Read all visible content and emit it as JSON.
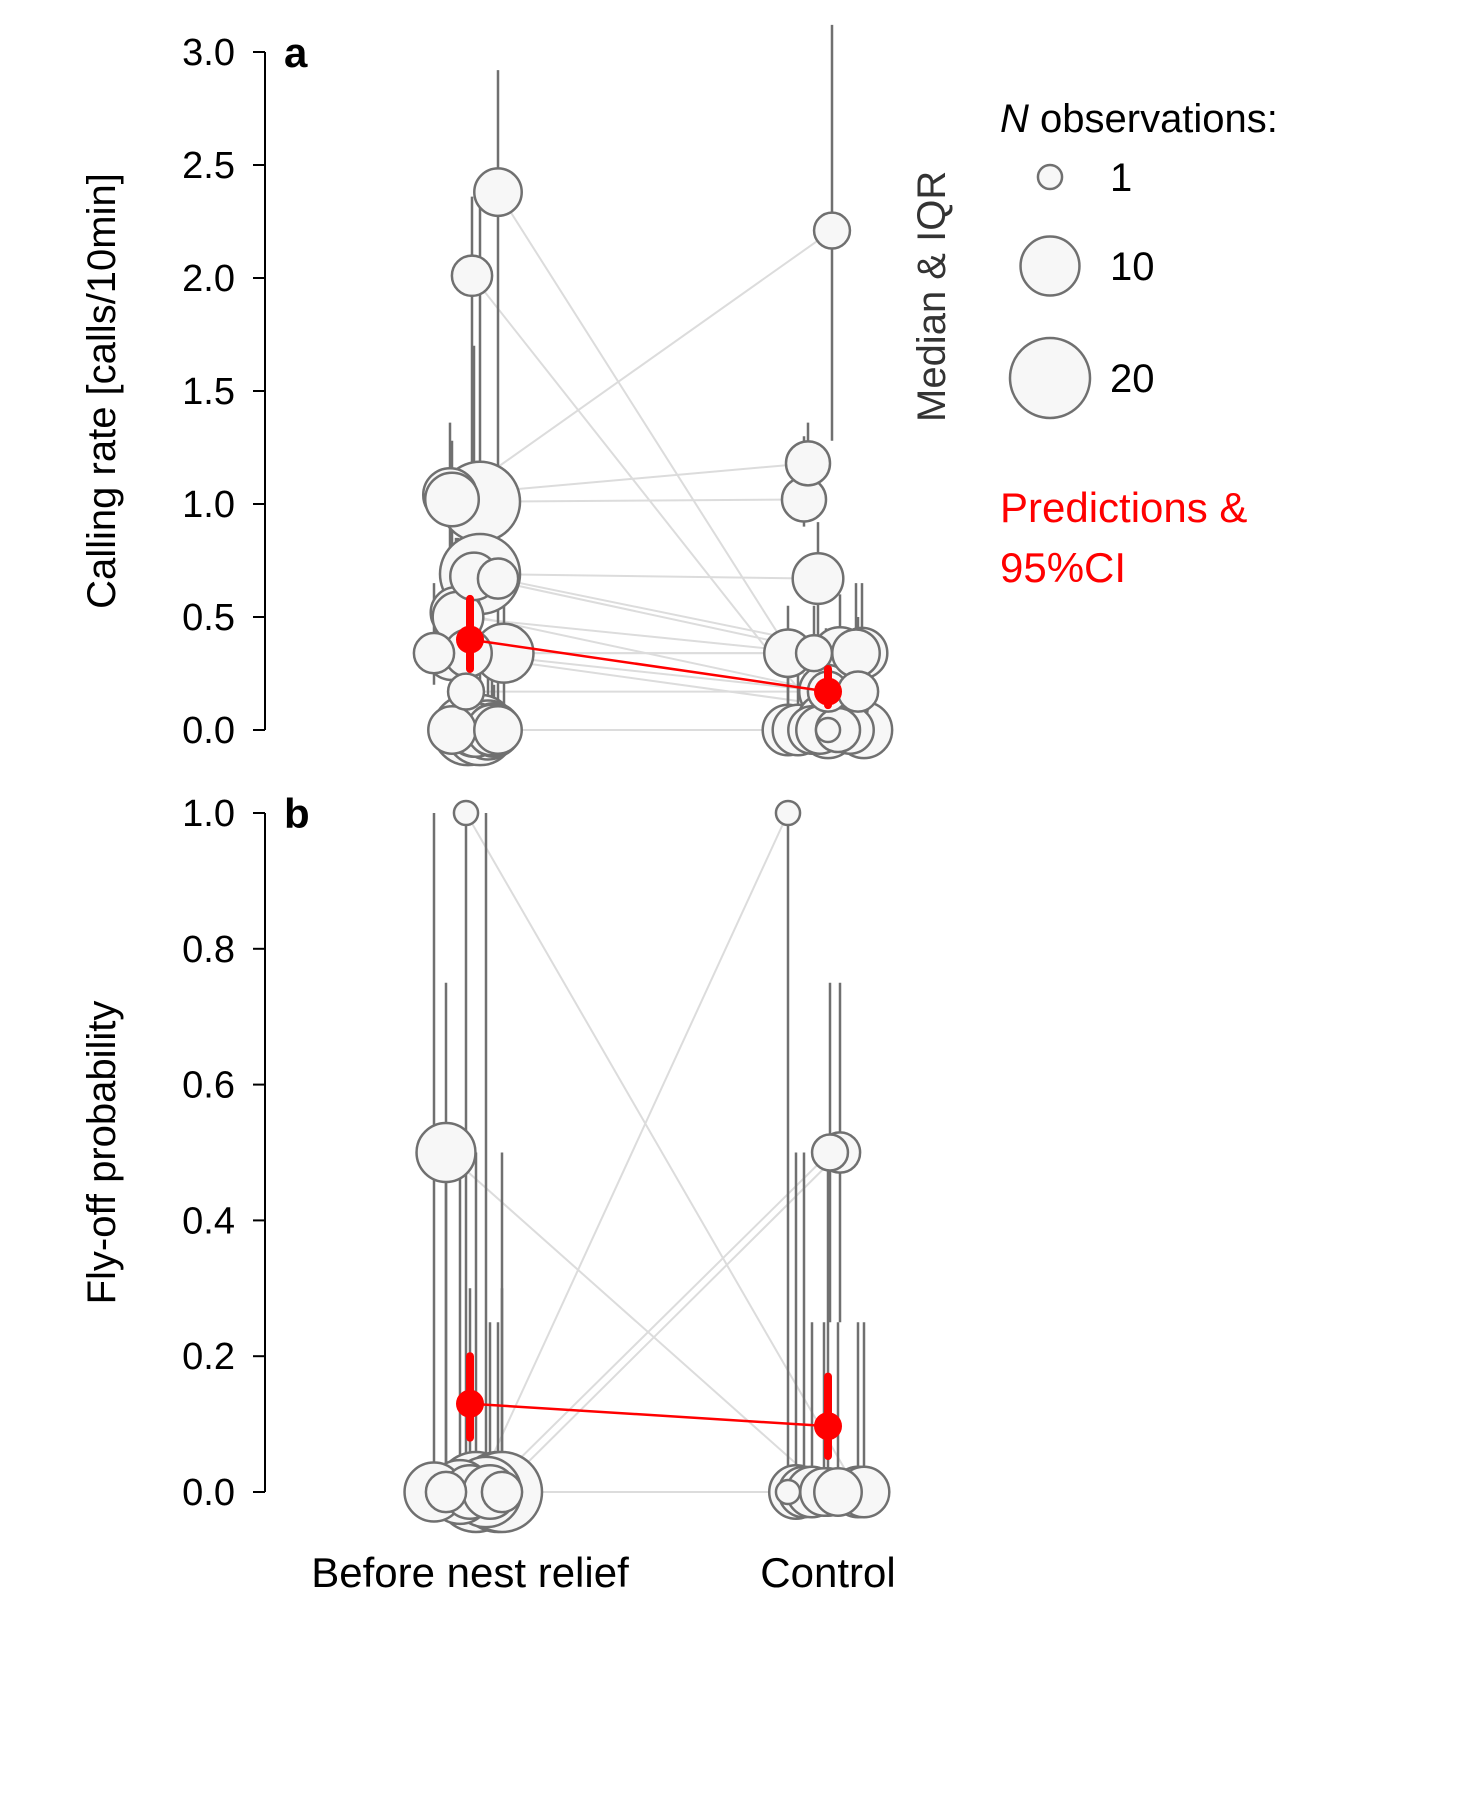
{
  "colors": {
    "bubble_fill": "#f7f7f7",
    "bubble_stroke": "#707070",
    "connector": "#dcdcdc",
    "iqr": "#707070",
    "prediction": "#ff0000",
    "axis": "#000000"
  },
  "chart_data": [
    {
      "type": "scatter",
      "panel_label": "a",
      "ylabel": "Calling rate [calls/10min]",
      "xlabel": "",
      "categories": [
        "Before nest relief",
        "Control"
      ],
      "ylim": [
        0,
        3.0
      ],
      "yticks": [
        0.0,
        0.5,
        1.0,
        1.5,
        2.0,
        2.5,
        3.0
      ],
      "ytick_labels": [
        "0.0",
        "0.5",
        "1.0",
        "1.5",
        "2.0",
        "2.5",
        "3.0"
      ],
      "show_x_labels": false,
      "pairs": [
        {
          "before": {
            "jitter": 0.14,
            "y": 2.38,
            "lo": 1.05,
            "hi": 2.92,
            "n": 6
          },
          "control": {
            "jitter": 0.02,
            "y": 0.05,
            "lo": 0.0,
            "hi": 0.3,
            "n": 6
          }
        },
        {
          "before": {
            "jitter": 0.01,
            "y": 2.01,
            "lo": 1.05,
            "hi": 2.36,
            "n": 4
          },
          "control": {
            "jitter": -0.03,
            "y": 0.05,
            "lo": 0.0,
            "hi": 0.3,
            "n": 6
          }
        },
        {
          "before": {
            "jitter": 0.05,
            "y": 1.01,
            "lo": 0.6,
            "hi": 2.36,
            "n": 20
          },
          "control": {
            "jitter": -0.12,
            "y": 1.02,
            "lo": 0.9,
            "hi": 1.3,
            "n": 5
          }
        },
        {
          "before": {
            "jitter": -0.1,
            "y": 1.04,
            "lo": 0.3,
            "hi": 1.36,
            "n": 8
          },
          "control": {
            "jitter": -0.1,
            "y": 1.18,
            "lo": 1.0,
            "hi": 1.36,
            "n": 5
          }
        },
        {
          "before": {
            "jitter": -0.09,
            "y": 1.02,
            "lo": 0.7,
            "hi": 1.28,
            "n": 8
          },
          "control": {
            "jitter": 0.02,
            "y": 2.21,
            "lo": 1.28,
            "hi": 3.12,
            "n": 3
          }
        },
        {
          "before": {
            "jitter": 0.05,
            "y": 0.69,
            "lo": 0.3,
            "hi": 1.0,
            "n": 20
          },
          "control": {
            "jitter": -0.05,
            "y": 0.67,
            "lo": 0.35,
            "hi": 0.92,
            "n": 7
          }
        },
        {
          "before": {
            "jitter": 0.02,
            "y": 0.68,
            "lo": 0.35,
            "hi": 1.7,
            "n": 6
          },
          "control": {
            "jitter": 0.06,
            "y": 0.33,
            "lo": 0.1,
            "hi": 0.6,
            "n": 9
          }
        },
        {
          "before": {
            "jitter": 0.14,
            "y": 0.67,
            "lo": 0.35,
            "hi": 1.02,
            "n": 4
          },
          "control": {
            "jitter": 0.17,
            "y": 0.34,
            "lo": 0.1,
            "hi": 0.65,
            "n": 7
          }
        },
        {
          "before": {
            "jitter": -0.07,
            "y": 0.52,
            "lo": 0.2,
            "hi": 0.85,
            "n": 7
          },
          "control": {
            "jitter": -0.01,
            "y": 0.17,
            "lo": 0.05,
            "hi": 0.45,
            "n": 8
          }
        },
        {
          "before": {
            "jitter": -0.06,
            "y": 0.5,
            "lo": 0.2,
            "hi": 0.85,
            "n": 7
          },
          "control": {
            "jitter": -0.07,
            "y": 0.34,
            "lo": 0.05,
            "hi": 0.55,
            "n": 3
          }
        },
        {
          "before": {
            "jitter": 0.17,
            "y": 0.34,
            "lo": 0.0,
            "hi": 0.6,
            "n": 10
          },
          "control": {
            "jitter": -0.2,
            "y": 0.34,
            "lo": 0.0,
            "hi": 0.55,
            "n": 6
          }
        },
        {
          "before": {
            "jitter": -0.18,
            "y": 0.34,
            "lo": 0.2,
            "hi": 0.65,
            "n": 4
          },
          "control": {
            "jitter": 0.14,
            "y": 0.34,
            "lo": 0.05,
            "hi": 0.65,
            "n": 6
          }
        },
        {
          "before": {
            "jitter": -0.09,
            "y": 0.34,
            "lo": 0.0,
            "hi": 0.6,
            "n": 8
          },
          "control": {
            "jitter": 0.08,
            "y": 0.1,
            "lo": 0.0,
            "hi": 0.45,
            "n": 6
          }
        },
        {
          "before": {
            "jitter": -0.01,
            "y": 0.34,
            "lo": 0.05,
            "hi": 0.6,
            "n": 6
          },
          "control": {
            "jitter": 0.0,
            "y": 0.17,
            "lo": 0.0,
            "hi": 0.4,
            "n": 4
          }
        },
        {
          "before": {
            "jitter": -0.02,
            "y": 0.17,
            "lo": 0.0,
            "hi": 0.4,
            "n": 3
          },
          "control": {
            "jitter": 0.15,
            "y": 0.17,
            "lo": 0.0,
            "hi": 0.5,
            "n": 4
          }
        },
        {
          "before": {
            "jitter": -0.09,
            "y": 0.0,
            "lo": 0.0,
            "hi": 0.3,
            "n": 6
          },
          "control": {
            "jitter": -0.2,
            "y": 0.0,
            "lo": 0.0,
            "hi": 0.3,
            "n": 7
          }
        },
        {
          "before": {
            "jitter": -0.01,
            "y": 0.0,
            "lo": 0.0,
            "hi": 0.35,
            "n": 15
          },
          "control": {
            "jitter": -0.15,
            "y": 0.0,
            "lo": 0.0,
            "hi": 0.25,
            "n": 7
          }
        },
        {
          "before": {
            "jitter": 0.05,
            "y": 0.0,
            "lo": 0.0,
            "hi": 0.4,
            "n": 15
          },
          "control": {
            "jitter": -0.08,
            "y": 0.0,
            "lo": 0.0,
            "hi": 0.2,
            "n": 6
          }
        },
        {
          "before": {
            "jitter": 0.09,
            "y": 0.0,
            "lo": 0.0,
            "hi": 0.3,
            "n": 10
          },
          "control": {
            "jitter": -0.04,
            "y": 0.0,
            "lo": 0.0,
            "hi": 0.2,
            "n": 6
          }
        },
        {
          "before": {
            "jitter": 0.11,
            "y": 0.0,
            "lo": 0.0,
            "hi": 0.3,
            "n": 7
          },
          "control": {
            "jitter": 0.05,
            "y": 0.0,
            "lo": 0.0,
            "hi": 0.1,
            "n": 5
          }
        },
        {
          "before": {
            "jitter": 0.14,
            "y": 0.0,
            "lo": 0.0,
            "hi": 0.3,
            "n": 6
          },
          "control": {
            "jitter": 0.11,
            "y": 0.0,
            "lo": 0.0,
            "hi": 0.2,
            "n": 6
          }
        },
        {
          "before": {
            "jitter": 0.02,
            "y": 0.0,
            "lo": 0.0,
            "hi": 0.3,
            "n": 8
          },
          "control": {
            "jitter": 0.0,
            "y": 0.0,
            "lo": 0.0,
            "hi": 0.1,
            "n": 9
          }
        },
        {
          "before": {
            "jitter": 0.03,
            "y": 0.0,
            "lo": 0.0,
            "hi": 0.2,
            "n": 8
          },
          "control": {
            "jitter": 0.0,
            "y": 0.0,
            "lo": 0.0,
            "hi": 0.0,
            "n": 1
          }
        },
        {
          "before": {
            "jitter": 0.12,
            "y": 0.0,
            "lo": 0.0,
            "hi": 0.2,
            "n": 8
          },
          "control": {
            "jitter": 0.18,
            "y": 0.0,
            "lo": 0.0,
            "hi": 0.15,
            "n": 9
          }
        }
      ],
      "predictions": [
        {
          "category": "Before nest relief",
          "jitter": 0.0,
          "y": 0.4,
          "lo": 0.27,
          "hi": 0.58
        },
        {
          "category": "Control",
          "jitter": 0.0,
          "y": 0.17,
          "lo": 0.11,
          "hi": 0.27
        }
      ]
    },
    {
      "type": "scatter",
      "panel_label": "b",
      "ylabel": "Fly-off probability",
      "xlabel": "",
      "categories": [
        "Before nest relief",
        "Control"
      ],
      "ylim": [
        0,
        1.0
      ],
      "yticks": [
        0.0,
        0.2,
        0.4,
        0.6,
        0.8,
        1.0
      ],
      "ytick_labels": [
        "0.0",
        "0.2",
        "0.4",
        "0.6",
        "0.8",
        "1.0"
      ],
      "show_x_labels": true,
      "pairs": [
        {
          "before": {
            "jitter": -0.02,
            "y": 1.0,
            "lo": 0.0,
            "hi": 1.0,
            "n": 1
          },
          "control": {
            "jitter": 0.15,
            "y": 0.0,
            "lo": 0.0,
            "hi": 0.25,
            "n": 7
          }
        },
        {
          "before": {
            "jitter": -0.12,
            "y": 0.5,
            "lo": 0.0,
            "hi": 0.75,
            "n": 10
          },
          "control": {
            "jitter": 0.0,
            "y": 0.0,
            "lo": 0.0,
            "hi": 0.5,
            "n": 6
          }
        },
        {
          "before": {
            "jitter": 0.03,
            "y": 0.0,
            "lo": 0.0,
            "hi": 0.5,
            "n": 20
          },
          "control": {
            "jitter": -0.2,
            "y": 1.0,
            "lo": 0.0,
            "hi": 1.0,
            "n": 1
          }
        },
        {
          "before": {
            "jitter": 0.08,
            "y": 0.0,
            "lo": 0.0,
            "hi": 1.0,
            "n": 15
          },
          "control": {
            "jitter": 0.01,
            "y": 0.5,
            "lo": 0.25,
            "hi": 0.75,
            "n": 3
          }
        },
        {
          "before": {
            "jitter": 0.14,
            "y": 0.0,
            "lo": 0.0,
            "hi": 0.25,
            "n": 20
          },
          "control": {
            "jitter": 0.06,
            "y": 0.5,
            "lo": 0.25,
            "hi": 0.75,
            "n": 4
          }
        },
        {
          "before": {
            "jitter": -0.18,
            "y": 0.0,
            "lo": 0.0,
            "hi": 1.0,
            "n": 10
          },
          "control": {
            "jitter": -0.16,
            "y": 0.0,
            "lo": 0.0,
            "hi": 0.5,
            "n": 8
          }
        },
        {
          "before": {
            "jitter": -0.12,
            "y": 0.0,
            "lo": 0.0,
            "hi": 0.5,
            "n": 4
          },
          "control": {
            "jitter": -0.2,
            "y": 0.0,
            "lo": 0.0,
            "hi": 0.0,
            "n": 1
          }
        },
        {
          "before": {
            "jitter": -0.05,
            "y": 0.0,
            "lo": 0.0,
            "hi": 0.5,
            "n": 12
          },
          "control": {
            "jitter": -0.12,
            "y": 0.0,
            "lo": 0.0,
            "hi": 0.5,
            "n": 7
          }
        },
        {
          "before": {
            "jitter": 0.16,
            "y": 0.0,
            "lo": 0.0,
            "hi": 0.5,
            "n": 20
          },
          "control": {
            "jitter": -0.08,
            "y": 0.0,
            "lo": 0.0,
            "hi": 0.25,
            "n": 7
          }
        },
        {
          "before": {
            "jitter": 0.0,
            "y": 0.0,
            "lo": 0.0,
            "hi": 0.3,
            "n": 8
          },
          "control": {
            "jitter": -0.02,
            "y": 0.0,
            "lo": 0.0,
            "hi": 0.25,
            "n": 6
          }
        },
        {
          "before": {
            "jitter": 0.1,
            "y": 0.0,
            "lo": 0.0,
            "hi": 0.25,
            "n": 8
          },
          "control": {
            "jitter": 0.05,
            "y": 0.0,
            "lo": 0.0,
            "hi": 0.25,
            "n": 6
          }
        },
        {
          "before": {
            "jitter": 0.16,
            "y": 0.0,
            "lo": 0.0,
            "hi": 0.3,
            "n": 4
          },
          "control": {
            "jitter": 0.18,
            "y": 0.0,
            "lo": 0.0,
            "hi": 0.25,
            "n": 7
          }
        }
      ],
      "predictions": [
        {
          "category": "Before nest relief",
          "jitter": 0.0,
          "y": 0.13,
          "lo": 0.08,
          "hi": 0.2
        },
        {
          "category": "Control",
          "jitter": 0.0,
          "y": 0.097,
          "lo": 0.053,
          "hi": 0.17
        }
      ]
    }
  ],
  "legend": {
    "title_italic": "N",
    "title_rest": " observations:",
    "sizes": [
      {
        "n": 1,
        "label": "1"
      },
      {
        "n": 10,
        "label": "10"
      },
      {
        "n": 20,
        "label": "20"
      }
    ],
    "side_label": "Median & IQR",
    "prediction_line1": "Predictions &",
    "prediction_line2": "95%CI"
  }
}
